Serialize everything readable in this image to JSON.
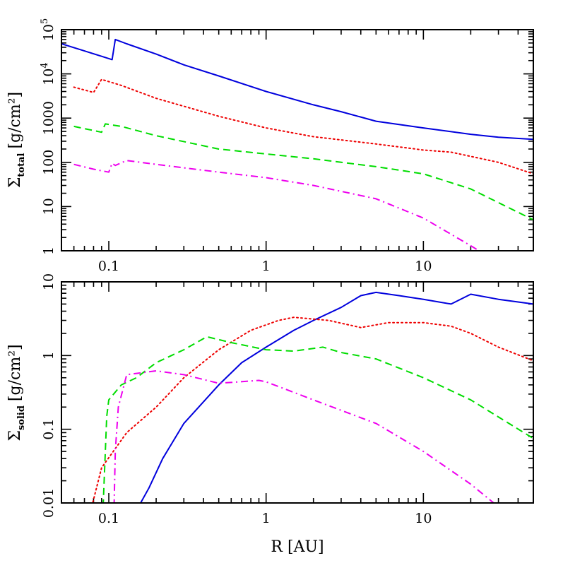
{
  "chart_data": [
    {
      "type": "line",
      "panel": "top",
      "ylabel_symbol": "Σ",
      "ylabel_sub": "total",
      "ylabel_unit": "[g/cm²]",
      "xscale": "log",
      "yscale": "log",
      "xlim": [
        0.05,
        50
      ],
      "ylim": [
        1,
        100000
      ],
      "grid": false,
      "x_tick_labels": [
        {
          "v": 0.1,
          "t": "0.1"
        },
        {
          "v": 1,
          "t": "1"
        },
        {
          "v": 10,
          "t": "10"
        }
      ],
      "y_tick_labels": [
        {
          "v": 1,
          "t": "1"
        },
        {
          "v": 10,
          "t": "10"
        },
        {
          "v": 100,
          "t": "100"
        },
        {
          "v": 1000,
          "t": "1000"
        },
        {
          "v": 10000,
          "t": "10",
          "sup": "4"
        },
        {
          "v": 100000,
          "t": "10",
          "sup": "5"
        }
      ],
      "series": [
        {
          "color": "#0000dd",
          "dash": "solid",
          "points": [
            [
              0.05,
              48000
            ],
            [
              0.07,
              33000
            ],
            [
              0.09,
              25000
            ],
            [
              0.105,
              21000
            ],
            [
              0.11,
              60000
            ],
            [
              0.13,
              48000
            ],
            [
              0.2,
              28000
            ],
            [
              0.3,
              16000
            ],
            [
              0.5,
              9000
            ],
            [
              1,
              4000
            ],
            [
              2,
              2000
            ],
            [
              3,
              1400
            ],
            [
              5,
              850
            ],
            [
              10,
              600
            ],
            [
              20,
              430
            ],
            [
              30,
              370
            ],
            [
              50,
              330
            ]
          ]
        },
        {
          "color": "#ee0000",
          "dash": "dotted",
          "points": [
            [
              0.06,
              5000
            ],
            [
              0.08,
              3800
            ],
            [
              0.09,
              7500
            ],
            [
              0.12,
              5500
            ],
            [
              0.2,
              2800
            ],
            [
              0.5,
              1100
            ],
            [
              1,
              600
            ],
            [
              2,
              380
            ],
            [
              5,
              260
            ],
            [
              10,
              190
            ],
            [
              15,
              170
            ],
            [
              30,
              100
            ],
            [
              50,
              55
            ]
          ]
        },
        {
          "color": "#00dd00",
          "dash": "dashed",
          "points": [
            [
              0.06,
              650
            ],
            [
              0.09,
              480
            ],
            [
              0.095,
              740
            ],
            [
              0.12,
              650
            ],
            [
              0.2,
              400
            ],
            [
              0.5,
              200
            ],
            [
              1,
              155
            ],
            [
              2,
              120
            ],
            [
              5,
              80
            ],
            [
              10,
              55
            ],
            [
              20,
              25
            ],
            [
              50,
              5
            ]
          ]
        },
        {
          "color": "#ee00ee",
          "dash": "dashdot",
          "points": [
            [
              0.06,
              90
            ],
            [
              0.08,
              70
            ],
            [
              0.1,
              60
            ],
            [
              0.105,
              95
            ],
            [
              0.11,
              85
            ],
            [
              0.13,
              110
            ],
            [
              0.2,
              90
            ],
            [
              0.5,
              60
            ],
            [
              1,
              45
            ],
            [
              2,
              30
            ],
            [
              5,
              15
            ],
            [
              10,
              5.5
            ],
            [
              20,
              1.3
            ],
            [
              25,
              0.8
            ]
          ]
        }
      ]
    },
    {
      "type": "line",
      "panel": "bottom",
      "xlabel": "R [AU]",
      "ylabel_symbol": "Σ",
      "ylabel_sub": "solid",
      "ylabel_unit": "[g/cm²]",
      "xscale": "log",
      "yscale": "log",
      "xlim": [
        0.05,
        50
      ],
      "ylim": [
        0.01,
        10
      ],
      "grid": false,
      "x_tick_labels": [
        {
          "v": 0.1,
          "t": "0.1"
        },
        {
          "v": 1,
          "t": "1"
        },
        {
          "v": 10,
          "t": "10"
        }
      ],
      "y_tick_labels": [
        {
          "v": 0.01,
          "t": "0.01"
        },
        {
          "v": 0.1,
          "t": "0.1"
        },
        {
          "v": 1,
          "t": "1"
        },
        {
          "v": 10,
          "t": "10"
        }
      ],
      "series": [
        {
          "color": "#0000dd",
          "dash": "solid",
          "points": [
            [
              0.155,
              0.009
            ],
            [
              0.18,
              0.016
            ],
            [
              0.22,
              0.04
            ],
            [
              0.3,
              0.12
            ],
            [
              0.5,
              0.4
            ],
            [
              0.7,
              0.8
            ],
            [
              1,
              1.3
            ],
            [
              1.5,
              2.2
            ],
            [
              2,
              3
            ],
            [
              3,
              4.5
            ],
            [
              4,
              6.5
            ],
            [
              5,
              7.2
            ],
            [
              7,
              6.5
            ],
            [
              10,
              5.8
            ],
            [
              15,
              5
            ],
            [
              20,
              6.8
            ],
            [
              30,
              5.8
            ],
            [
              50,
              5
            ]
          ]
        },
        {
          "color": "#ee0000",
          "dash": "dotted",
          "points": [
            [
              0.078,
              0.009
            ],
            [
              0.09,
              0.03
            ],
            [
              0.13,
              0.09
            ],
            [
              0.2,
              0.2
            ],
            [
              0.3,
              0.5
            ],
            [
              0.5,
              1.2
            ],
            [
              0.8,
              2.2
            ],
            [
              1.2,
              3
            ],
            [
              1.5,
              3.3
            ],
            [
              2.5,
              3
            ],
            [
              4,
              2.4
            ],
            [
              6,
              2.8
            ],
            [
              10,
              2.8
            ],
            [
              15,
              2.5
            ],
            [
              20,
              2
            ],
            [
              30,
              1.3
            ],
            [
              50,
              0.85
            ]
          ]
        },
        {
          "color": "#00dd00",
          "dash": "dashed",
          "points": [
            [
              0.092,
              0.009
            ],
            [
              0.097,
              0.15
            ],
            [
              0.1,
              0.25
            ],
            [
              0.12,
              0.4
            ],
            [
              0.15,
              0.5
            ],
            [
              0.2,
              0.8
            ],
            [
              0.3,
              1.2
            ],
            [
              0.42,
              1.8
            ],
            [
              0.6,
              1.5
            ],
            [
              1,
              1.2
            ],
            [
              1.5,
              1.15
            ],
            [
              2.3,
              1.3
            ],
            [
              3,
              1.1
            ],
            [
              5,
              0.9
            ],
            [
              10,
              0.5
            ],
            [
              20,
              0.25
            ],
            [
              50,
              0.075
            ]
          ]
        },
        {
          "color": "#ee00ee",
          "dash": "dashdot",
          "points": [
            [
              0.108,
              0.009
            ],
            [
              0.11,
              0.05
            ],
            [
              0.115,
              0.2
            ],
            [
              0.13,
              0.55
            ],
            [
              0.2,
              0.62
            ],
            [
              0.3,
              0.55
            ],
            [
              0.5,
              0.42
            ],
            [
              0.9,
              0.46
            ],
            [
              1,
              0.44
            ],
            [
              2,
              0.25
            ],
            [
              5,
              0.12
            ],
            [
              10,
              0.05
            ],
            [
              20,
              0.018
            ],
            [
              28,
              0.01
            ]
          ]
        }
      ]
    }
  ]
}
